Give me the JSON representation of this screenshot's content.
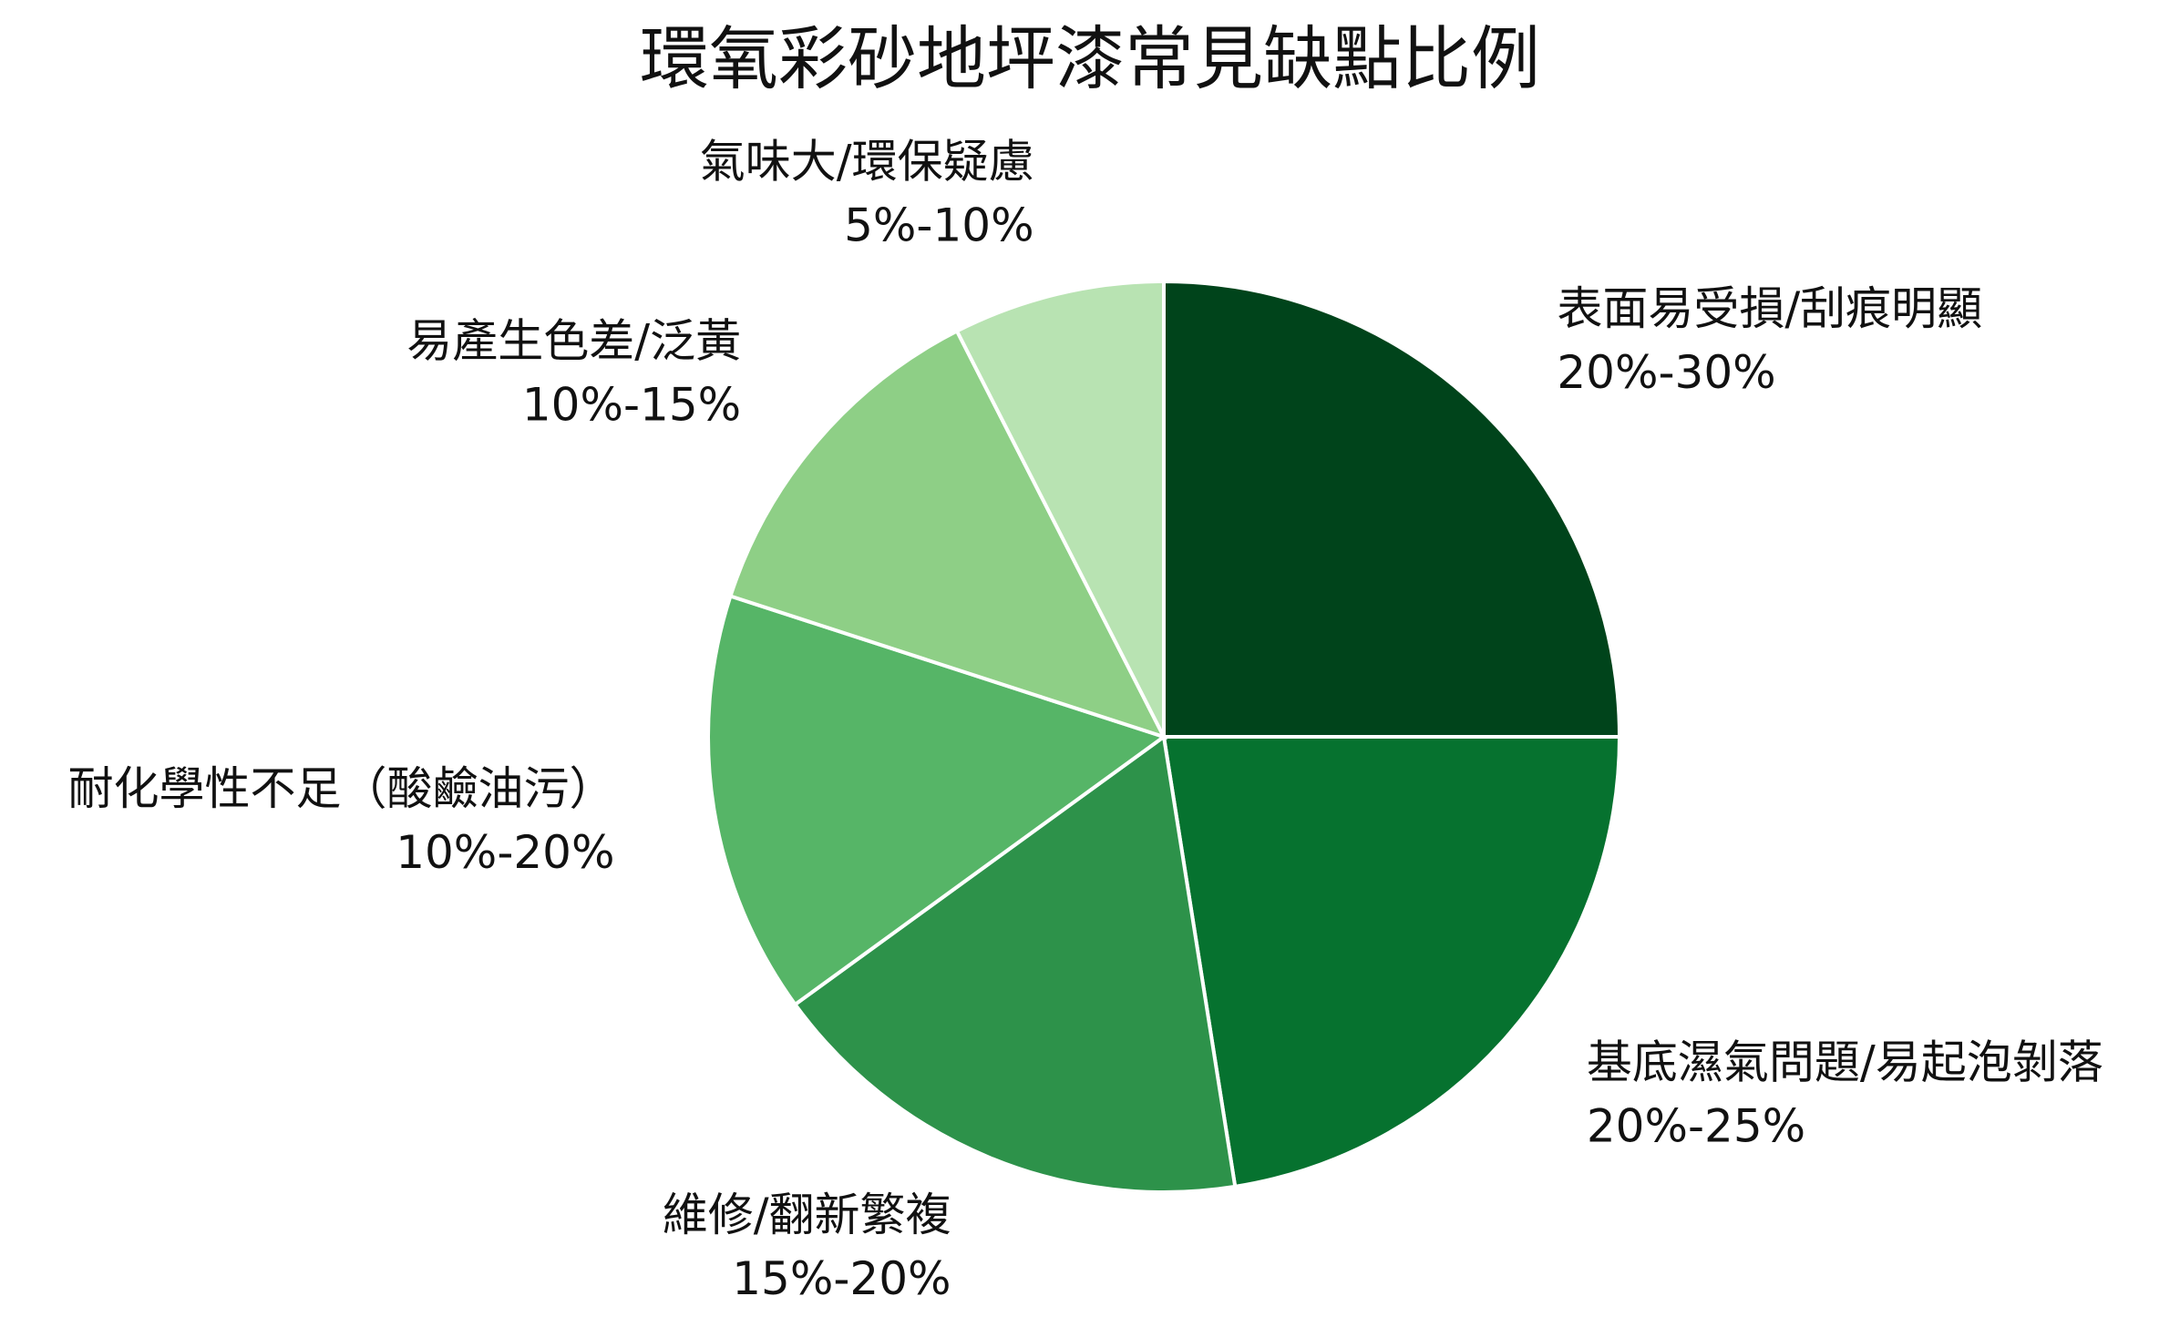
{
  "chart_data": {
    "type": "pie",
    "title": "環氧彩砂地坪漆常見缺點比例",
    "categories": [
      "表面易受損/刮痕明顯",
      "基底濕氣問題/易起泡剝落",
      "維修/翻新繁複",
      "耐化學性不足（酸鹼油污）",
      "易產生色差/泛黃",
      "氣味大/環保疑慮"
    ],
    "values": [
      25,
      22.5,
      17.5,
      15,
      12.5,
      7.5
    ],
    "value_labels": [
      "20%-30%",
      "20%-25%",
      "15%-20%",
      "10%-20%",
      "10%-15%",
      "5%-10%"
    ],
    "colors": [
      "#00441b",
      "#06722f",
      "#2d924a",
      "#56b567",
      "#8ecf86",
      "#b8e3b2"
    ]
  }
}
